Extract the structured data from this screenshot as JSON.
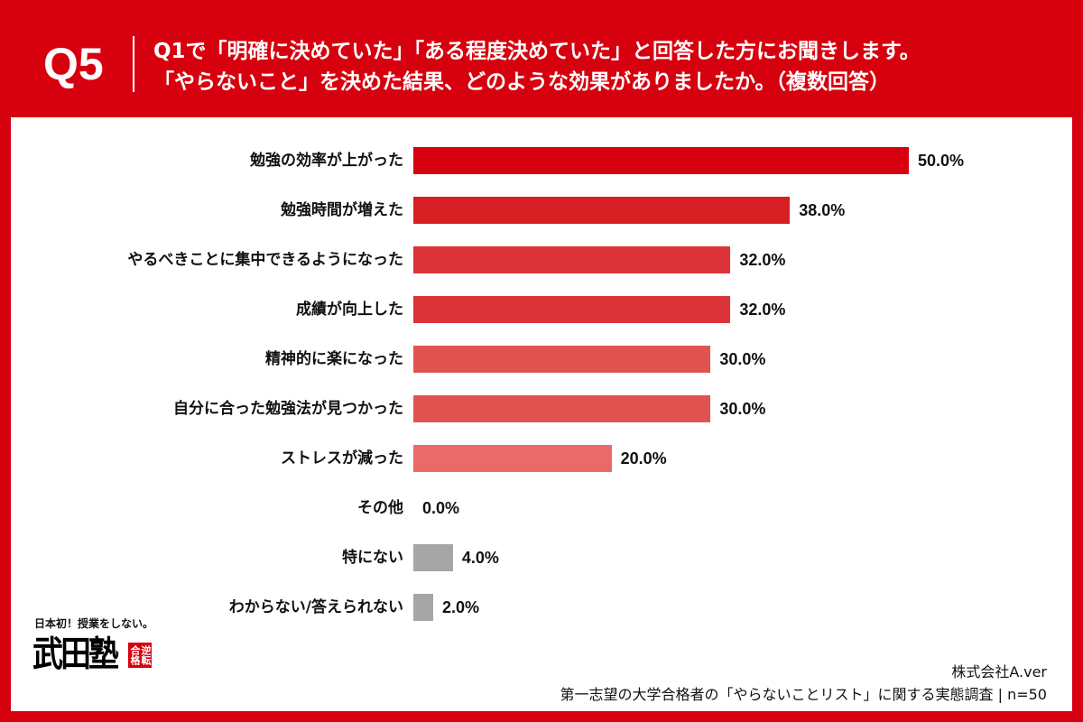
{
  "header": {
    "q_label": "Q5",
    "question_line1": "Q1で「明確に決めていた」「ある程度決めていた」と回答した方にお聞きします。",
    "question_line2": "「やらないこと」を決めた結果、どのような効果がありましたか。（複数回答）"
  },
  "chart_data": {
    "type": "bar",
    "orientation": "horizontal",
    "categories": [
      "勉強の効率が上がった",
      "勉強時間が増えた",
      "やるべきことに集中できるようになった",
      "成績が向上した",
      "精神的に楽になった",
      "自分に合った勉強法が見つかった",
      "ストレスが減った",
      "その他",
      "特にない",
      "わからない/答えられない"
    ],
    "values": [
      50.0,
      38.0,
      32.0,
      32.0,
      30.0,
      30.0,
      20.0,
      0.0,
      4.0,
      2.0
    ],
    "value_labels": [
      "50.0%",
      "38.0%",
      "32.0%",
      "32.0%",
      "30.0%",
      "30.0%",
      "20.0%",
      "0.0%",
      "4.0%",
      "2.0%"
    ],
    "xlim": [
      0,
      50
    ],
    "grid": false,
    "legend": "none",
    "colors": [
      "#d7000f",
      "#d71f24",
      "#dc3339",
      "#dc3339",
      "#e15350",
      "#e15350",
      "#ea6a6a",
      null,
      "#a6a6a6",
      "#a6a6a6"
    ]
  },
  "footer": {
    "logo_tagline": "日本初！授業をしない。",
    "logo_name": "武田塾",
    "logo_seal": "逆転合格",
    "company": "株式会社A.ver",
    "source": "第一志望の大学合格者の「やらないことリスト」に関する実態調査 | n=50"
  },
  "colors": {
    "brand_red": "#d7000f",
    "card_background": "#ffffff",
    "text": "#111111"
  }
}
